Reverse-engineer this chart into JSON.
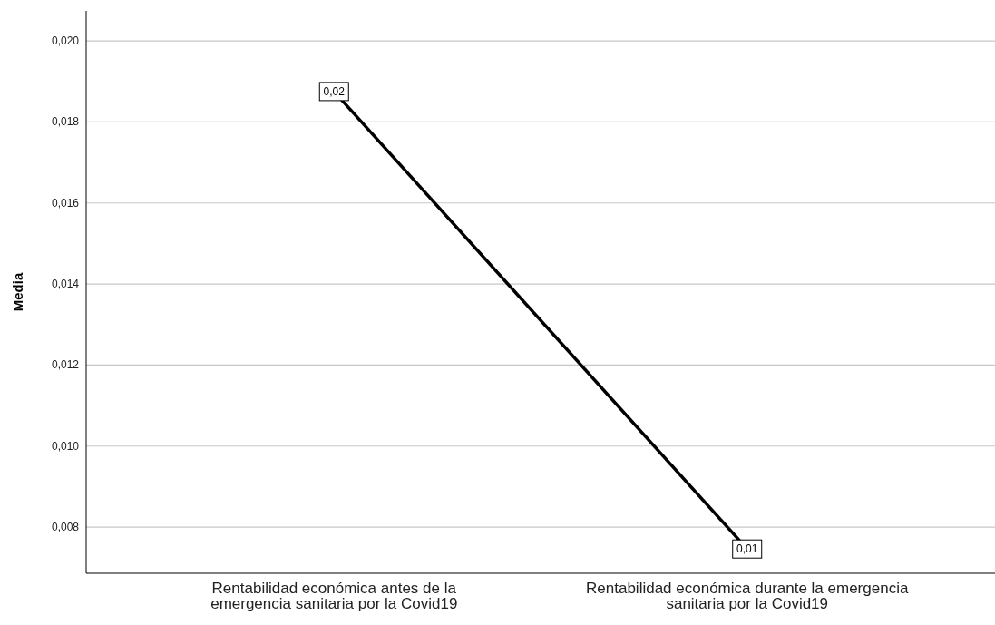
{
  "chart_data": {
    "type": "line",
    "ylabel": "Media",
    "categories": [
      "Rentabilidad económica antes de la emergencia sanitaria por la Covid19",
      "Rentabilidad económica durante la emergencia sanitaria por la Covid19"
    ],
    "series": [
      {
        "color": "#000000",
        "values": [
          0.01875,
          0.00746
        ],
        "value_labels": [
          "0,02",
          "0,01"
        ]
      }
    ],
    "ylim": [
      0.00686,
      0.02074
    ],
    "yticks": [
      {
        "value": 0.008,
        "label": "0,008"
      },
      {
        "value": 0.01,
        "label": "0,010"
      },
      {
        "value": 0.012,
        "label": "0,012"
      },
      {
        "value": 0.014,
        "label": "0,014"
      },
      {
        "value": 0.016,
        "label": "0,016"
      },
      {
        "value": 0.018,
        "label": "0,018"
      },
      {
        "value": 0.02,
        "label": "0,020"
      }
    ],
    "grid": "y",
    "marker": "square",
    "line_style": "solid"
  }
}
